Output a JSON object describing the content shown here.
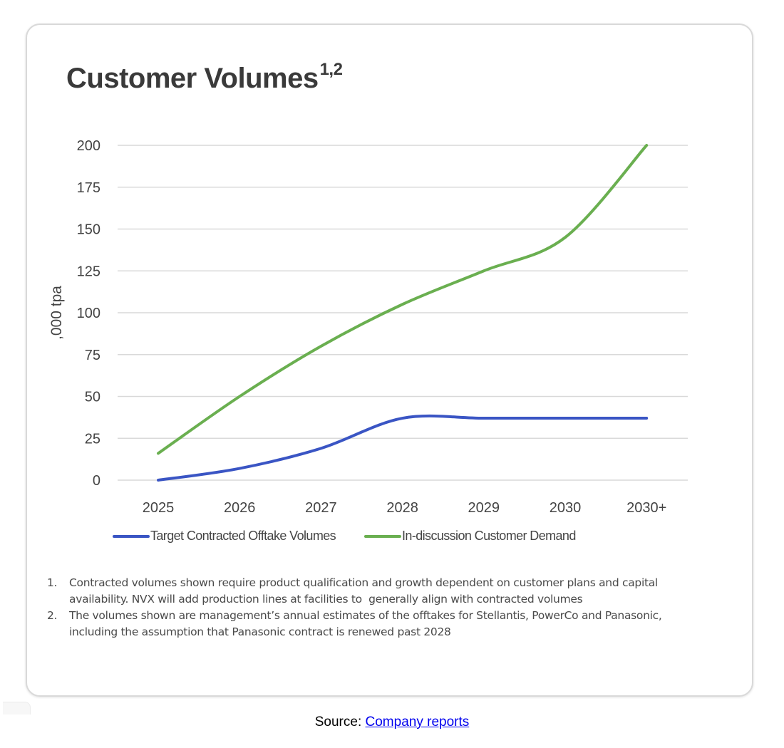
{
  "card": {
    "title": "Customer Volumes",
    "title_superscript": "1,2"
  },
  "chart_data": {
    "type": "line",
    "title": "Customer Volumes",
    "xlabel": "",
    "ylabel": ",000 tpa",
    "categories": [
      "2025",
      "2026",
      "2027",
      "2028",
      "2029",
      "2030",
      "2030+"
    ],
    "ylim": [
      0,
      200
    ],
    "yticks": [
      0,
      25,
      50,
      75,
      100,
      125,
      150,
      175,
      200
    ],
    "grid": true,
    "smooth": true,
    "legend_position": "bottom",
    "series": [
      {
        "name": "Target Contracted Offtake Volumes",
        "color": "#3a55c4",
        "values": [
          0,
          7,
          19,
          37,
          37,
          37,
          37
        ]
      },
      {
        "name": "In-discussion Customer Demand",
        "color": "#6aaf50",
        "values": [
          16,
          50,
          80,
          105,
          125,
          145,
          200
        ]
      }
    ]
  },
  "notes": [
    {
      "num": "1.",
      "text": "Contracted volumes shown require product qualification and growth dependent on customer plans and capital availability. NVX will add production lines at facilities to  generally align with contracted volumes"
    },
    {
      "num": "2.",
      "text": "The volumes shown are management’s annual estimates of the offtakes for Stellantis, PowerCo and Panasonic, including the assumption that Panasonic contract is renewed past 2028"
    }
  ],
  "source": {
    "prefix": "Source: ",
    "link_text": "Company reports"
  }
}
